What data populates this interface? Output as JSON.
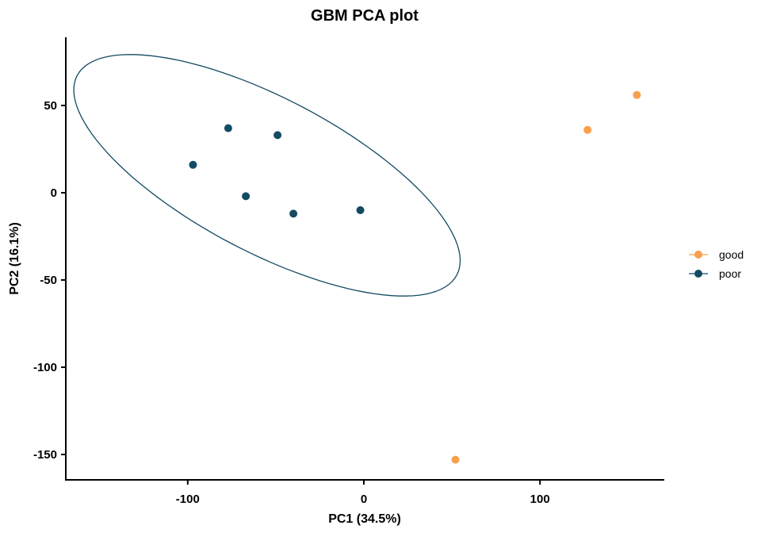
{
  "chart_data": {
    "type": "scatter",
    "title": "GBM PCA plot",
    "xlabel": "PC1 (34.5%)",
    "ylabel": "PC2 (16.1%)",
    "xlim": [
      -170,
      170
    ],
    "ylim": [
      -165,
      88
    ],
    "xticks": [
      -100,
      0,
      100
    ],
    "xtick_labels": [
      "-100",
      "0",
      "100"
    ],
    "yticks": [
      50,
      0,
      -50,
      -100,
      -150
    ],
    "ytick_labels": [
      "50",
      "0",
      "-50",
      "-100",
      "-150"
    ],
    "grid": false,
    "legend_position": "right",
    "series": [
      {
        "name": "good",
        "color": "#F8A04C",
        "points": [
          {
            "x": 52,
            "y": -153
          },
          {
            "x": 127,
            "y": 36
          },
          {
            "x": 155,
            "y": 56
          }
        ]
      },
      {
        "name": "poor",
        "color": "#134B63",
        "points": [
          {
            "x": -97,
            "y": 16
          },
          {
            "x": -77,
            "y": 37
          },
          {
            "x": -67,
            "y": -2
          },
          {
            "x": -49,
            "y": 33
          },
          {
            "x": -40,
            "y": -12
          },
          {
            "x": -2,
            "y": -10
          }
        ],
        "ellipse": {
          "cx": -55,
          "cy": 10,
          "rx": 122,
          "ry": 44,
          "angle_deg": -28
        }
      }
    ]
  }
}
